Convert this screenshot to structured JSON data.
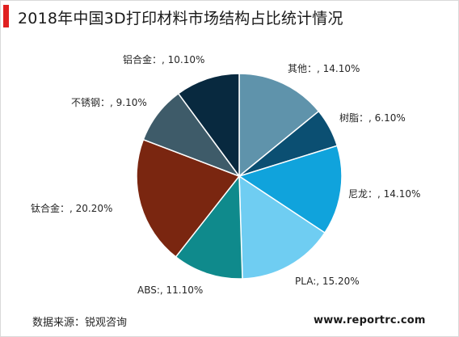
{
  "title": "2018年中国3D打印材料市场结构占比统计情况",
  "source": "数据来源：锐观咨询",
  "watermark": "www.reportrc.com",
  "chart_data": {
    "type": "pie",
    "title": "2018年中国3D打印材料市场结构占比统计情况",
    "start_direction": "top",
    "order": "clockwise",
    "slices": [
      {
        "name": "其他",
        "label": "其他：, 14.10%",
        "value": 14.1,
        "color": "#5f93ab"
      },
      {
        "name": "树脂",
        "label": "树脂：, 6.10%",
        "value": 6.1,
        "color": "#0b4f72"
      },
      {
        "name": "尼龙",
        "label": "尼龙：, 14.10%",
        "value": 14.1,
        "color": "#10a3dc"
      },
      {
        "name": "PLA",
        "label": "PLA:, 15.20%",
        "value": 15.2,
        "color": "#6fcdf2"
      },
      {
        "name": "ABS",
        "label": "ABS:, 11.10%",
        "value": 11.1,
        "color": "#0f8a8c"
      },
      {
        "name": "钛合金",
        "label": "钛合金：, 20.20%",
        "value": 20.2,
        "color": "#7a2610"
      },
      {
        "name": "不锈钢",
        "label": "不锈钢：, 9.10%",
        "value": 9.1,
        "color": "#3e5b69"
      },
      {
        "name": "铝合金",
        "label": "铝合金：, 10.10%",
        "value": 10.1,
        "color": "#08293f"
      }
    ]
  }
}
